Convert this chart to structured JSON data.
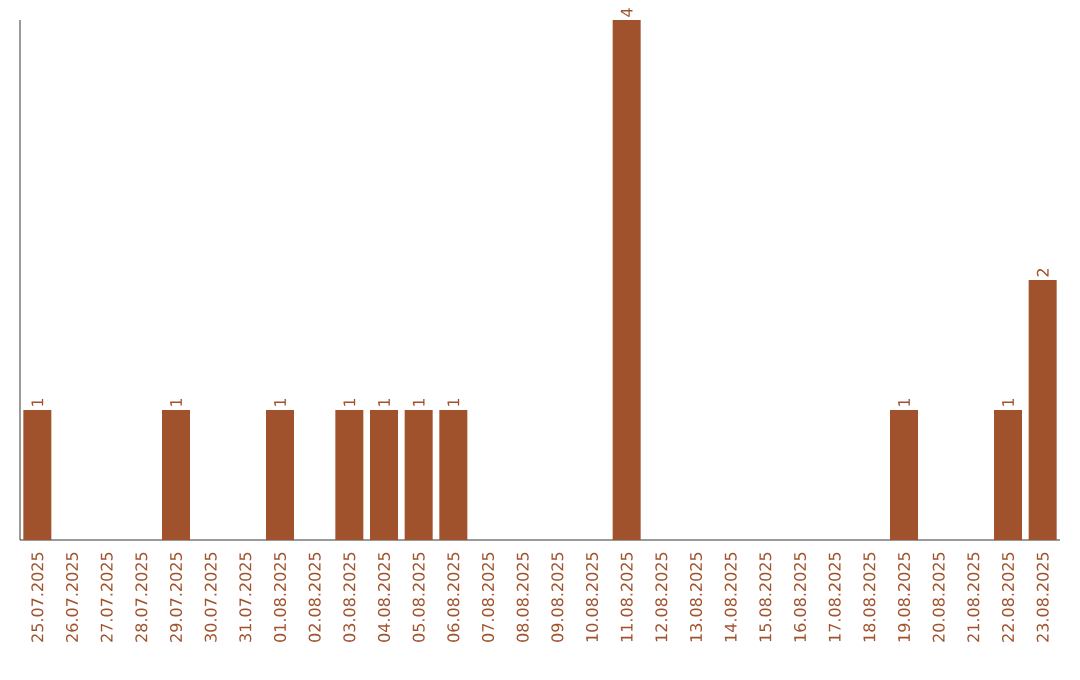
{
  "chart_data": {
    "type": "bar",
    "categories": [
      "25.07.2025",
      "26.07.2025",
      "27.07.2025",
      "28.07.2025",
      "29.07.2025",
      "30.07.2025",
      "31.07.2025",
      "01.08.2025",
      "02.08.2025",
      "03.08.2025",
      "04.08.2025",
      "05.08.2025",
      "06.08.2025",
      "07.08.2025",
      "08.08.2025",
      "09.08.2025",
      "10.08.2025",
      "11.08.2025",
      "12.08.2025",
      "13.08.2025",
      "14.08.2025",
      "15.08.2025",
      "16.08.2025",
      "17.08.2025",
      "18.08.2025",
      "19.08.2025",
      "20.08.2025",
      "21.08.2025",
      "22.08.2025",
      "23.08.2025"
    ],
    "values": [
      1,
      0,
      0,
      0,
      1,
      0,
      0,
      1,
      0,
      1,
      1,
      1,
      1,
      0,
      0,
      0,
      0,
      4,
      0,
      0,
      0,
      0,
      0,
      0,
      0,
      1,
      0,
      0,
      1,
      2
    ],
    "value_labels": [
      "1",
      null,
      null,
      null,
      "1",
      null,
      null,
      "1",
      null,
      "1",
      "1",
      "1",
      "1",
      null,
      null,
      null,
      null,
      "4",
      null,
      null,
      null,
      null,
      null,
      null,
      null,
      "1",
      null,
      null,
      "1",
      "2"
    ],
    "color": "#a0522d"
  }
}
